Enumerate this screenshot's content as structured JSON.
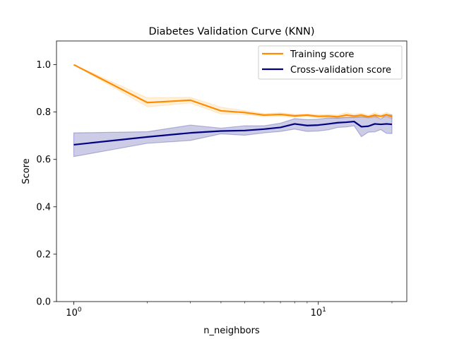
{
  "chart_data": {
    "type": "line",
    "title": "Diabetes Validation Curve (KNN)",
    "xlabel": "n_neighbors",
    "ylabel": "Score",
    "xscale": "log",
    "xlim": [
      0.85,
      23
    ],
    "ylim": [
      0.0,
      1.1
    ],
    "x_ticks": [
      {
        "value": 1,
        "base": "10",
        "exp": "0"
      },
      {
        "value": 10,
        "base": "10",
        "exp": "1"
      }
    ],
    "y_ticks": [
      "0.0",
      "0.2",
      "0.4",
      "0.6",
      "0.8",
      "1.0"
    ],
    "grid": false,
    "legend_position": "upper right",
    "x": [
      1,
      2,
      3,
      4,
      5,
      6,
      7,
      8,
      9,
      10,
      11,
      12,
      13,
      14,
      15,
      16,
      17,
      18,
      19,
      20
    ],
    "series": [
      {
        "name": "Training score",
        "color": "#ff8c00",
        "band_color": "#ffb84d",
        "values": [
          1.0,
          0.84,
          0.85,
          0.805,
          0.798,
          0.787,
          0.79,
          0.784,
          0.787,
          0.782,
          0.783,
          0.78,
          0.787,
          0.783,
          0.787,
          0.78,
          0.787,
          0.782,
          0.789,
          0.78
        ],
        "band_upper": [
          1.0,
          0.86,
          0.862,
          0.82,
          0.806,
          0.793,
          0.797,
          0.79,
          0.792,
          0.788,
          0.789,
          0.787,
          0.797,
          0.79,
          0.795,
          0.786,
          0.797,
          0.788,
          0.799,
          0.789
        ],
        "band_lower": [
          1.0,
          0.822,
          0.838,
          0.792,
          0.79,
          0.781,
          0.783,
          0.778,
          0.782,
          0.776,
          0.777,
          0.773,
          0.777,
          0.776,
          0.779,
          0.774,
          0.777,
          0.776,
          0.779,
          0.771
        ]
      },
      {
        "name": "Cross-validation score",
        "color": "#000080",
        "band_color": "#000080",
        "values": [
          0.662,
          0.695,
          0.712,
          0.72,
          0.722,
          0.728,
          0.735,
          0.75,
          0.743,
          0.745,
          0.75,
          0.755,
          0.757,
          0.76,
          0.738,
          0.74,
          0.75,
          0.748,
          0.75,
          0.748
        ],
        "band_upper": [
          0.712,
          0.717,
          0.745,
          0.732,
          0.742,
          0.742,
          0.753,
          0.772,
          0.768,
          0.77,
          0.775,
          0.775,
          0.777,
          0.778,
          0.78,
          0.778,
          0.784,
          0.77,
          0.79,
          0.787
        ],
        "band_lower": [
          0.612,
          0.668,
          0.68,
          0.708,
          0.702,
          0.712,
          0.718,
          0.728,
          0.718,
          0.72,
          0.725,
          0.735,
          0.737,
          0.742,
          0.696,
          0.715,
          0.716,
          0.726,
          0.71,
          0.709
        ]
      }
    ]
  }
}
